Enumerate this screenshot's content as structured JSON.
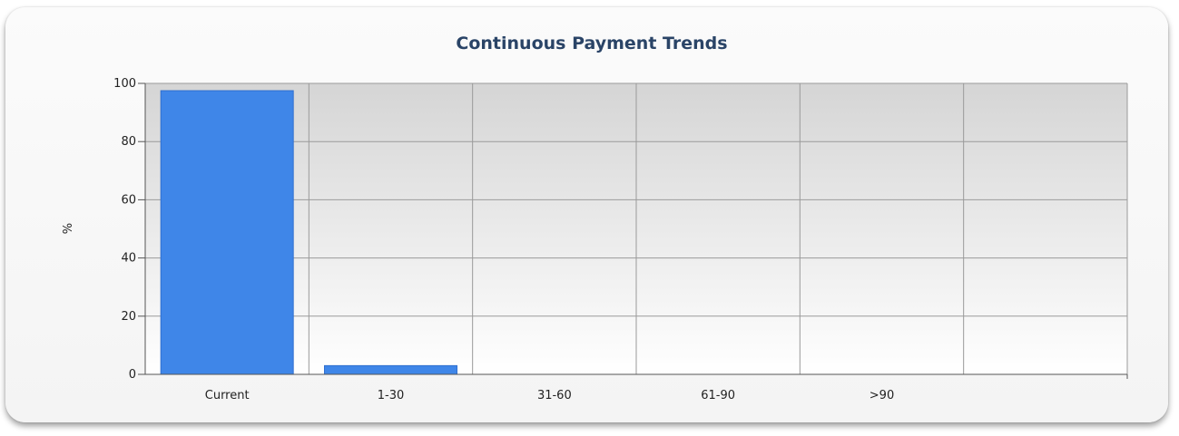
{
  "chart_data": {
    "type": "bar",
    "title": "Continuous Payment Trends",
    "xlabel": "",
    "ylabel": "%",
    "categories": [
      "Current",
      "1-30",
      "31-60",
      "61-90",
      ">90"
    ],
    "values": [
      97.5,
      3,
      0,
      0,
      0
    ],
    "ylim": [
      0,
      100
    ],
    "yticks": [
      0,
      20,
      40,
      60,
      80,
      100
    ],
    "grid": true,
    "colors": {
      "bar": "#3f86e8",
      "bar_edge": "#2f6fcf",
      "grid": "#9a9a9a",
      "axis": "#555555",
      "title": "#2a4467"
    }
  }
}
